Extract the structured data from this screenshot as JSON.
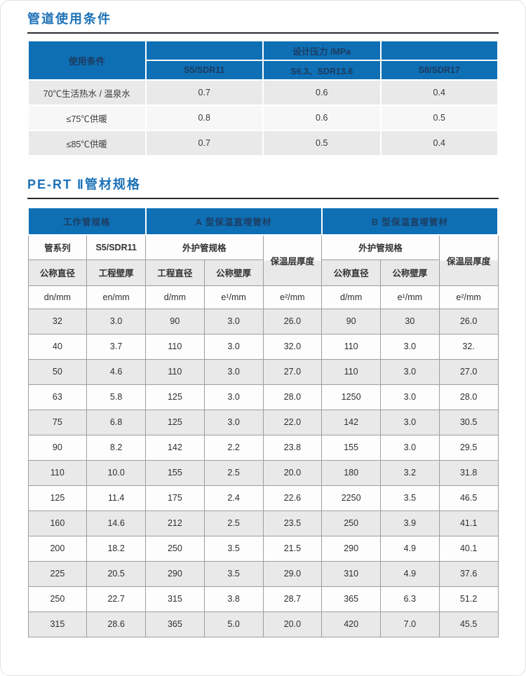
{
  "colors": {
    "header_blue": "#0e6fb4",
    "header_text_navy": "#1c3b60",
    "title_blue": "#1d72b8",
    "stripe_gray": "#e9e9e9",
    "rule_dark": "#2a2a32"
  },
  "section1": {
    "title": "管道使用条件",
    "table": {
      "corner_header": "使用条件",
      "pressure_header": "设计压力 /MPa",
      "sdr_columns": [
        "S5/SDR11",
        "S6.3、SDR13.6",
        "S8/SDR17"
      ],
      "rows": [
        {
          "label": "70℃生活热水 / 温泉水",
          "values": [
            "0.7",
            "0.6",
            "0.4"
          ]
        },
        {
          "label": "≤75℃供暖",
          "values": [
            "0.8",
            "0.6",
            "0.5"
          ]
        },
        {
          "label": "≤85℃供暖",
          "values": [
            "0.7",
            "0.5",
            "0.4"
          ]
        }
      ]
    }
  },
  "section2": {
    "title": "PE-RT Ⅱ管材规格",
    "table": {
      "group_headers": [
        "工作管规格",
        "A 型保温直埋管材",
        "B 型保温直埋管材"
      ],
      "sub_headers": {
        "pipe_series": "管系列",
        "sdr": "S5/SDR11",
        "outer_spec_a": "外护管规格",
        "insulation_a": "保温层厚度",
        "outer_spec_b": "外护管规格",
        "insulation_b": "保温层厚度",
        "nominal_diameter_work": "公称直径",
        "eng_wall_work": "工程壁厚",
        "eng_diameter_a": "工程直径",
        "nominal_wall_a": "公称壁厚",
        "nominal_diameter_b": "公称直径",
        "nominal_wall_b": "公称壁厚"
      },
      "units": [
        "dn/mm",
        "en/mm",
        "d/mm",
        "e¹/mm",
        "e²/mm",
        "d/mm",
        "e¹/mm",
        "e²/mm"
      ],
      "rows": [
        [
          "32",
          "3.0",
          "90",
          "3.0",
          "26.0",
          "90",
          "30",
          "26.0"
        ],
        [
          "40",
          "3.7",
          "110",
          "3.0",
          "32.0",
          "110",
          "3.0",
          "32."
        ],
        [
          "50",
          "4.6",
          "110",
          "3.0",
          "27.0",
          "110",
          "3.0",
          "27.0"
        ],
        [
          "63",
          "5.8",
          "125",
          "3.0",
          "28.0",
          "1250",
          "3.0",
          "28.0"
        ],
        [
          "75",
          "6.8",
          "125",
          "3.0",
          "22.0",
          "142",
          "3.0",
          "30.5"
        ],
        [
          "90",
          "8.2",
          "142",
          "2.2",
          "23.8",
          "155",
          "3.0",
          "29.5"
        ],
        [
          "110",
          "10.0",
          "155",
          "2.5",
          "20.0",
          "180",
          "3.2",
          "31.8"
        ],
        [
          "125",
          "11.4",
          "175",
          "2.4",
          "22.6",
          "2250",
          "3.5",
          "46.5"
        ],
        [
          "160",
          "14.6",
          "212",
          "2.5",
          "23.5",
          "250",
          "3.9",
          "41.1"
        ],
        [
          "200",
          "18.2",
          "250",
          "3.5",
          "21.5",
          "290",
          "4.9",
          "40.1"
        ],
        [
          "225",
          "20.5",
          "290",
          "3.5",
          "29.0",
          "310",
          "4.9",
          "37.6"
        ],
        [
          "250",
          "22.7",
          "315",
          "3.8",
          "28.7",
          "365",
          "6.3",
          "51.2"
        ],
        [
          "315",
          "28.6",
          "365",
          "5.0",
          "20.0",
          "420",
          "7.0",
          "45.5"
        ]
      ]
    }
  }
}
